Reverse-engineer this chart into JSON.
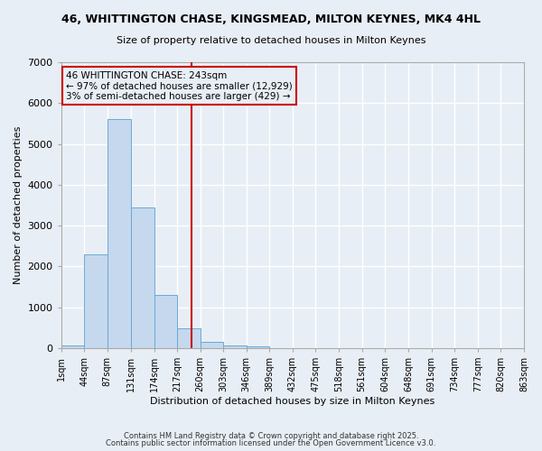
{
  "title": "46, WHITTINGTON CHASE, KINGSMEAD, MILTON KEYNES, MK4 4HL",
  "subtitle": "Size of property relative to detached houses in Milton Keynes",
  "xlabel": "Distribution of detached houses by size in Milton Keynes",
  "ylabel": "Number of detached properties",
  "bar_color": "#c5d8ee",
  "bar_edge_color": "#6aaad4",
  "background_color": "#e8eef5",
  "grid_color": "#ffffff",
  "bin_edges": [
    1,
    44,
    87,
    131,
    174,
    217,
    260,
    303,
    346,
    389,
    432,
    475,
    518,
    561,
    604,
    648,
    691,
    734,
    777,
    820,
    863
  ],
  "bar_heights": [
    75,
    2300,
    5600,
    3450,
    1300,
    475,
    160,
    75,
    50,
    0,
    0,
    0,
    0,
    0,
    0,
    0,
    0,
    0,
    0,
    0
  ],
  "tick_labels": [
    "1sqm",
    "44sqm",
    "87sqm",
    "131sqm",
    "174sqm",
    "217sqm",
    "260sqm",
    "303sqm",
    "346sqm",
    "389sqm",
    "432sqm",
    "475sqm",
    "518sqm",
    "561sqm",
    "604sqm",
    "648sqm",
    "691sqm",
    "734sqm",
    "777sqm",
    "820sqm",
    "863sqm"
  ],
  "property_size": 243,
  "vline_color": "#cc0000",
  "annotation_line1": "46 WHITTINGTON CHASE: 243sqm",
  "annotation_line2": "← 97% of detached houses are smaller (12,929)",
  "annotation_line3": "3% of semi-detached houses are larger (429) →",
  "annotation_box_color": "#cc0000",
  "ylim": [
    0,
    7000
  ],
  "yticks": [
    0,
    1000,
    2000,
    3000,
    4000,
    5000,
    6000,
    7000
  ],
  "footnote1": "Contains HM Land Registry data © Crown copyright and database right 2025.",
  "footnote2": "Contains public sector information licensed under the Open Government Licence v3.0."
}
